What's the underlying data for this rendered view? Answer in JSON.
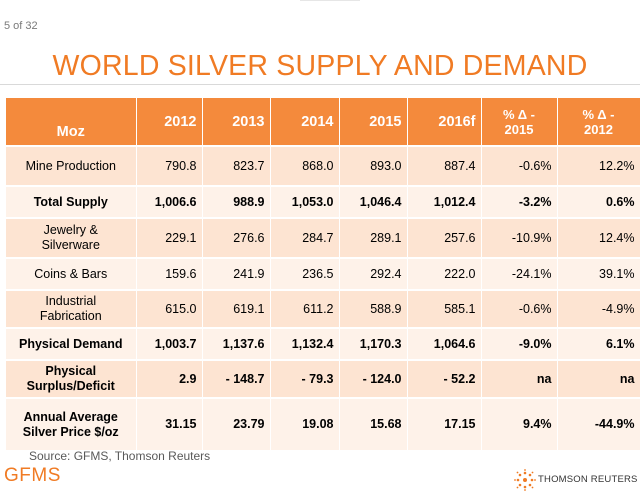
{
  "slide": {
    "page_count": "5 of 32",
    "title": "WORLD SILVER SUPPLY AND DEMAND",
    "source": "Source: GFMS, Thomson Reuters",
    "brand_left": "GFMS",
    "brand_right": "THOMSON REUTERS"
  },
  "colors": {
    "accent": "#f07b24",
    "header_bg": "#f48a3c",
    "row_dark": "#fde4d2",
    "row_light": "#fef2e9"
  },
  "table": {
    "headers": [
      "Moz",
      "2012",
      "2013",
      "2014",
      "2015",
      "2016f",
      "% Δ -\n2015",
      "% Δ -\n2012"
    ],
    "rows": [
      {
        "label": "Mine Production",
        "values": [
          "790.8",
          "823.7",
          "868.0",
          "893.0",
          "887.4",
          "-0.6%",
          "12.2%"
        ],
        "bold": false
      },
      {
        "label": "Total Supply",
        "values": [
          "1,006.6",
          "988.9",
          "1,053.0",
          "1,046.4",
          "1,012.4",
          "-3.2%",
          "0.6%"
        ],
        "bold": true
      },
      {
        "label": "Jewelry &\nSilverware",
        "values": [
          "229.1",
          "276.6",
          "284.7",
          "289.1",
          "257.6",
          "-10.9%",
          "12.4%"
        ],
        "bold": false
      },
      {
        "label": "Coins & Bars",
        "values": [
          "159.6",
          "241.9",
          "236.5",
          "292.4",
          "222.0",
          "-24.1%",
          "39.1%"
        ],
        "bold": false
      },
      {
        "label": "Industrial\nFabrication",
        "values": [
          "615.0",
          "619.1",
          "611.2",
          "588.9",
          "585.1",
          "-0.6%",
          "-4.9%"
        ],
        "bold": false
      },
      {
        "label": "Physical Demand",
        "values": [
          "1,003.7",
          "1,137.6",
          "1,132.4",
          "1,170.3",
          "1,064.6",
          "-9.0%",
          "6.1%"
        ],
        "bold": true
      },
      {
        "label": "Physical\nSurplus/Deficit",
        "values": [
          "2.9",
          "- 148.7",
          "- 79.3",
          "- 124.0",
          "- 52.2",
          "na",
          "na"
        ],
        "bold": true
      },
      {
        "label": "Annual Average\nSilver Price $/oz",
        "values": [
          "31.15",
          "23.79",
          "19.08",
          "15.68",
          "17.15",
          "9.4%",
          "-44.9%"
        ],
        "bold": true
      }
    ]
  }
}
